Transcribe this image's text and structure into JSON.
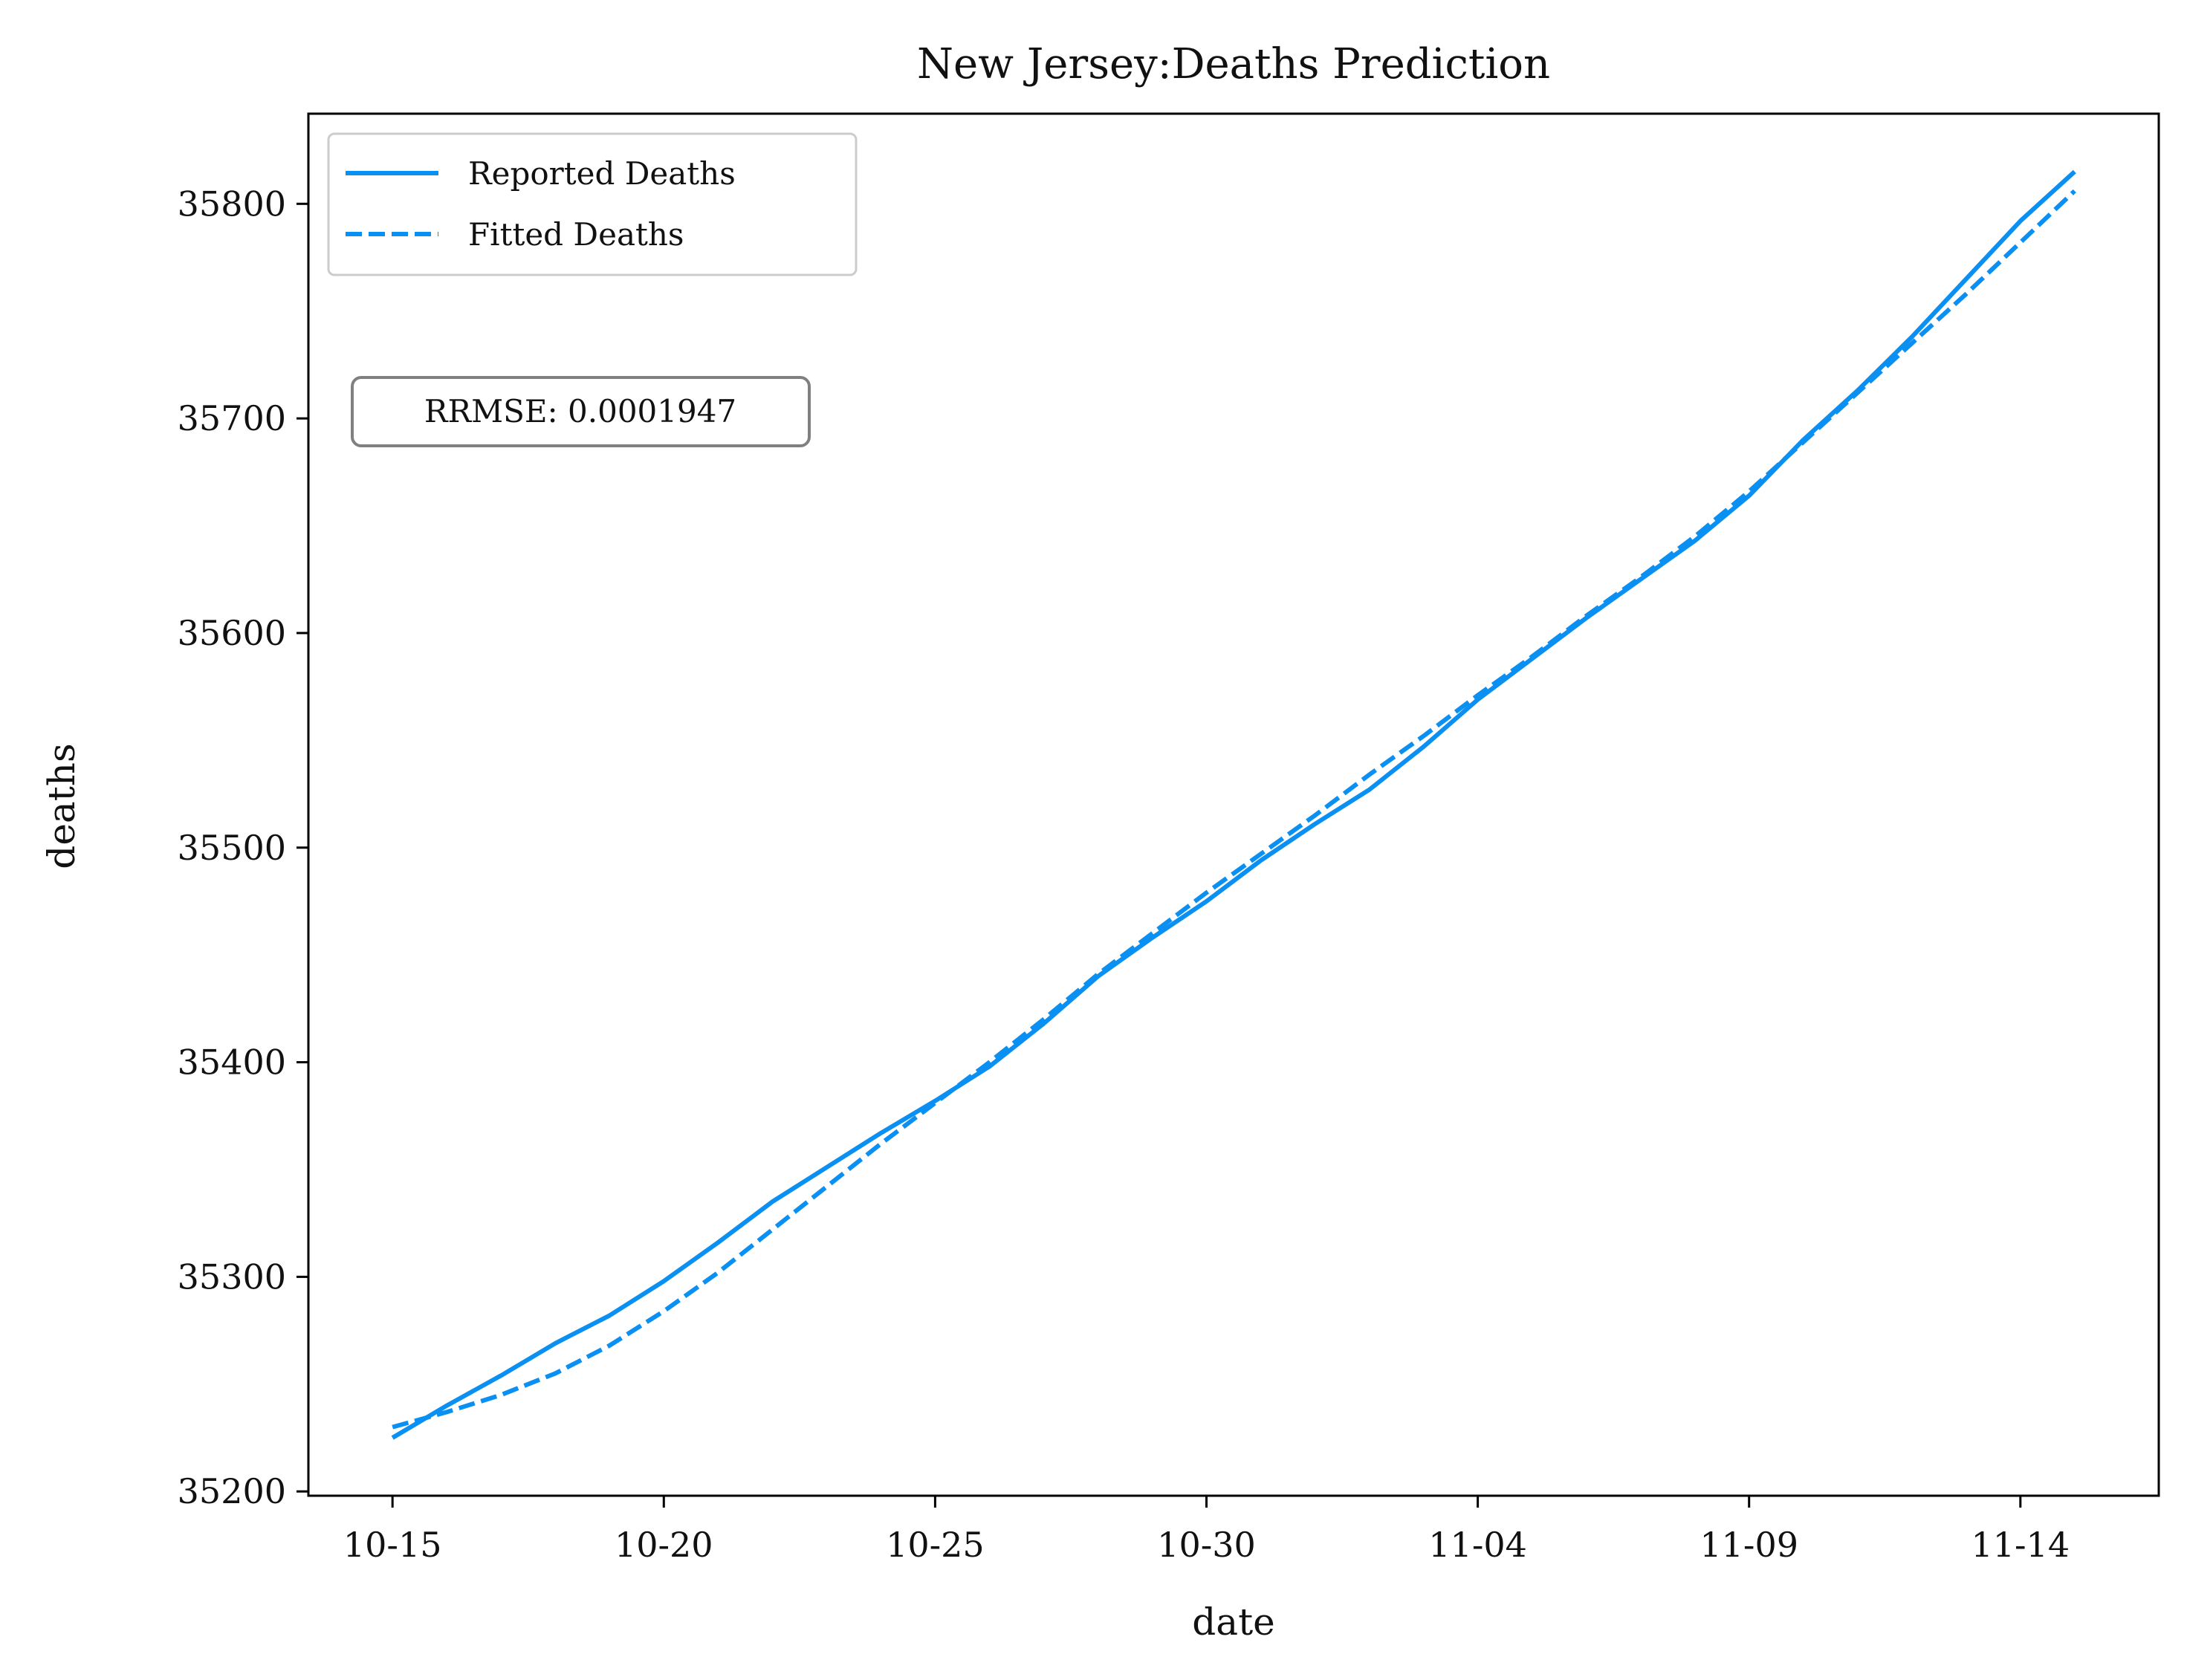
{
  "chart_data": {
    "type": "line",
    "title": "New Jersey:Deaths Prediction",
    "xlabel": "date",
    "ylabel": "deaths",
    "x_tick_labels": [
      "10-15",
      "10-20",
      "10-25",
      "10-30",
      "11-04",
      "11-09",
      "11-14"
    ],
    "y_ticks": [
      35200,
      35300,
      35400,
      35500,
      35600,
      35700,
      35800
    ],
    "xlim_days": [
      -1.55,
      32.55
    ],
    "ylim": [
      35198,
      35842
    ],
    "legend_position": "upper-left",
    "annotation": "RRMSE: 0.0001947",
    "grid": false,
    "x": [
      0,
      1,
      2,
      3,
      4,
      5,
      6,
      7,
      8,
      9,
      10,
      11,
      12,
      13,
      14,
      15,
      16,
      17,
      18,
      19,
      20,
      21,
      22,
      23,
      24,
      25,
      26,
      27,
      28,
      29,
      30,
      31
    ],
    "series": [
      {
        "name": "Reported Deaths",
        "style": "solid",
        "color": "#0a8ff2",
        "values": [
          35225,
          35240,
          35254,
          35269,
          35282,
          35298,
          35316,
          35335,
          35351,
          35367,
          35382,
          35398,
          35418,
          35440,
          35458,
          35475,
          35494,
          35511,
          35527,
          35547,
          35569,
          35588,
          35607,
          35625,
          35643,
          35664,
          35690,
          35713,
          35738,
          35765,
          35792,
          35815
        ]
      },
      {
        "name": "Fitted Deaths",
        "style": "dashed",
        "color": "#0a8ff2",
        "values": [
          35230,
          35237,
          35245,
          35255,
          35268,
          35284,
          35302,
          35322,
          35342,
          35362,
          35381,
          35400,
          35420,
          35441,
          35460,
          35479,
          35497,
          35515,
          35534,
          35552,
          35571,
          35589,
          35608,
          35626,
          35645,
          35666,
          35689,
          35712,
          35735,
          35758,
          35782,
          35806
        ]
      }
    ]
  }
}
